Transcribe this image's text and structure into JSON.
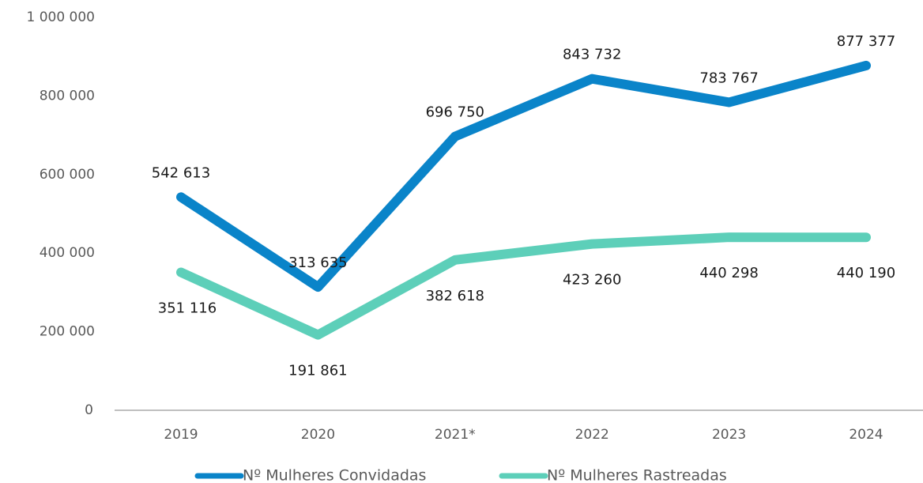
{
  "chart_data": {
    "type": "line",
    "categories": [
      "2019",
      "2020",
      "2021*",
      "2022",
      "2023",
      "2024"
    ],
    "series": [
      {
        "name": "Nº Mulheres Convidadas",
        "color": "#0a84c9",
        "values": [
          542613,
          313635,
          696750,
          843732,
          783767,
          877377
        ],
        "value_labels": [
          "542 613",
          "313 635",
          "696 750",
          "843 732",
          "783 767",
          "877 377"
        ]
      },
      {
        "name": "Nº Mulheres Rastreadas",
        "color": "#5dcfb9",
        "values": [
          351116,
          191861,
          382618,
          423260,
          440298,
          440190
        ],
        "value_labels": [
          "351 116",
          "191 861",
          "382 618",
          "423 260",
          "440 298",
          "440 190"
        ]
      }
    ],
    "ylim": [
      0,
      1000000
    ],
    "yticks": [
      0,
      {
        "value": 200000,
        "label": "200 000"
      },
      {
        "value": 400000,
        "label": "400 000"
      },
      {
        "value": 600000,
        "label": "600 000"
      },
      {
        "value": 800000,
        "label": "800 000"
      },
      {
        "value": 1000000,
        "label": "1 000 000"
      }
    ],
    "grid": false
  }
}
